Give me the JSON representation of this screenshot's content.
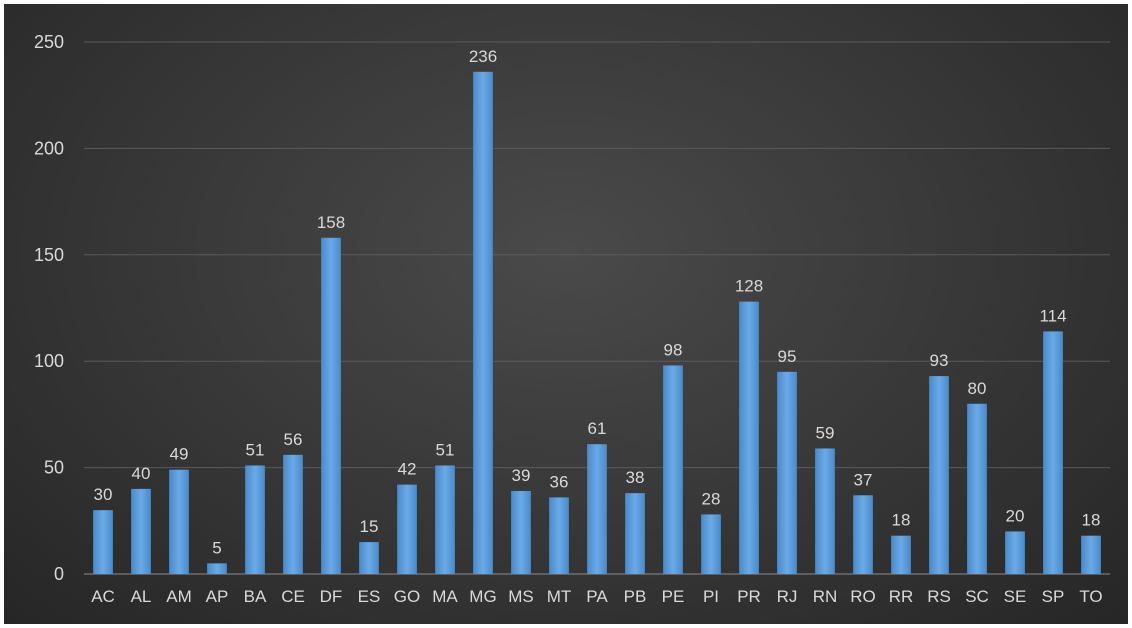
{
  "chart_data": {
    "type": "bar",
    "title": "",
    "xlabel": "",
    "ylabel": "",
    "ylim": [
      0,
      250
    ],
    "yticks": [
      0,
      50,
      100,
      150,
      200,
      250
    ],
    "grid": true,
    "categories": [
      "AC",
      "AL",
      "AM",
      "AP",
      "BA",
      "CE",
      "DF",
      "ES",
      "GO",
      "MA",
      "MG",
      "MS",
      "MT",
      "PA",
      "PB",
      "PE",
      "PI",
      "PR",
      "RJ",
      "RN",
      "RO",
      "RR",
      "RS",
      "SC",
      "SE",
      "SP",
      "TO"
    ],
    "series": [
      {
        "values": [
          30,
          40,
          49,
          5,
          51,
          56,
          158,
          15,
          42,
          51,
          236,
          39,
          36,
          61,
          38,
          98,
          28,
          128,
          95,
          59,
          37,
          18,
          93,
          80,
          20,
          114,
          18
        ],
        "color": "#5b9bd5"
      }
    ]
  }
}
